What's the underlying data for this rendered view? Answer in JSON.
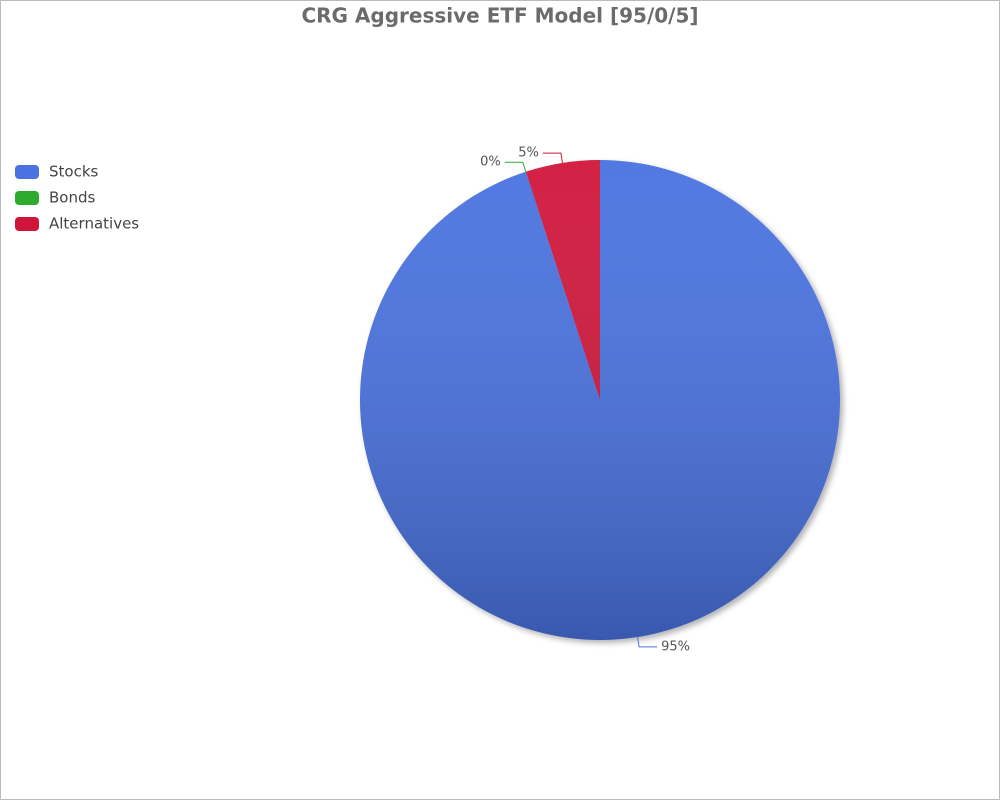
{
  "chart_data": {
    "type": "pie",
    "title": "CRG Aggressive ETF Model [95/0/5]",
    "categories": [
      "Stocks",
      "Bonds",
      "Alternatives"
    ],
    "values": [
      95,
      0,
      5
    ],
    "value_labels": [
      "95%",
      "0%",
      "5%"
    ],
    "colors": [
      "#4a72e0",
      "#2eaa2e",
      "#d0143a"
    ],
    "legend": "left"
  }
}
